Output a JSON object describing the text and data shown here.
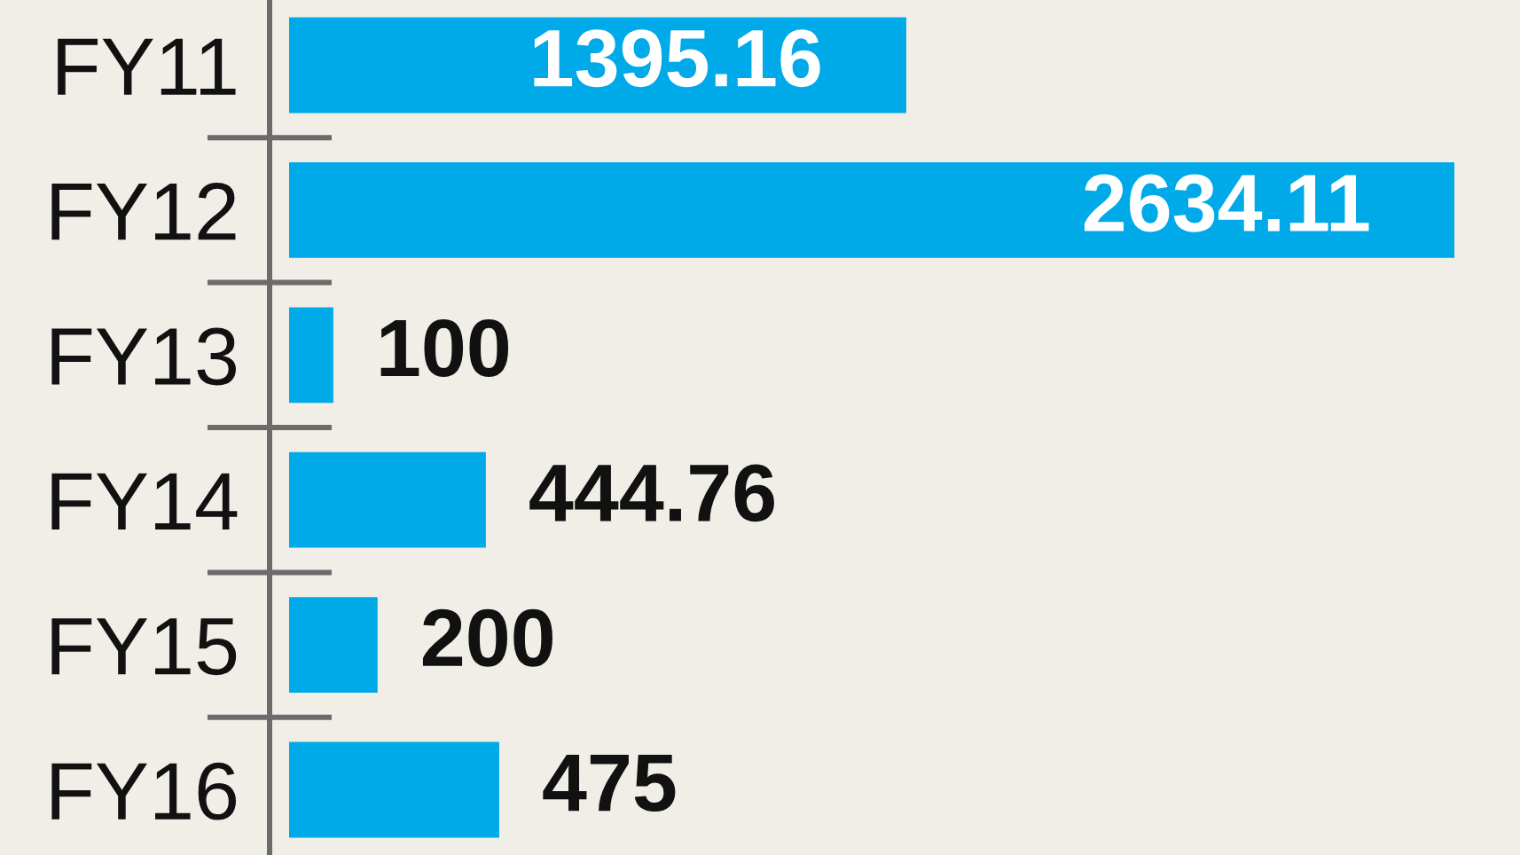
{
  "chart_data": {
    "type": "bar",
    "orientation": "horizontal",
    "categories": [
      "FY11",
      "FY12",
      "FY13",
      "FY14",
      "FY15",
      "FY16"
    ],
    "values": [
      1395.16,
      2634.11,
      100,
      444.76,
      200,
      475
    ],
    "color": "#00a9e8",
    "data_labels": true
  }
}
